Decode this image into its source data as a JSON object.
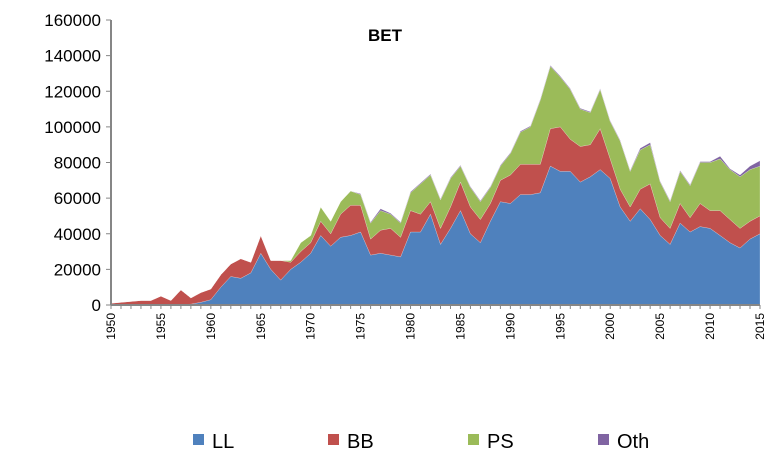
{
  "chart_data": {
    "type": "area",
    "stacked": true,
    "title": "BET",
    "xlabel": "",
    "ylabel": "",
    "ylim": [
      0,
      160000
    ],
    "yticks": [
      0,
      20000,
      40000,
      60000,
      80000,
      100000,
      120000,
      140000,
      160000
    ],
    "xlim": [
      1950,
      2015
    ],
    "xtick_labels": [
      "1950",
      "1955",
      "1960",
      "1965",
      "1970",
      "1975",
      "1980",
      "1985",
      "1990",
      "1995",
      "2000",
      "2005",
      "2010",
      "2015"
    ],
    "grid": false,
    "legend_position": "bottom",
    "x": [
      1950,
      1951,
      1952,
      1953,
      1954,
      1955,
      1956,
      1957,
      1958,
      1959,
      1960,
      1961,
      1962,
      1963,
      1964,
      1965,
      1966,
      1967,
      1968,
      1969,
      1970,
      1971,
      1972,
      1973,
      1974,
      1975,
      1976,
      1977,
      1978,
      1979,
      1980,
      1981,
      1982,
      1983,
      1984,
      1985,
      1986,
      1987,
      1988,
      1989,
      1990,
      1991,
      1992,
      1993,
      1994,
      1995,
      1996,
      1997,
      1998,
      1999,
      2000,
      2001,
      2002,
      2003,
      2004,
      2005,
      2006,
      2007,
      2008,
      2009,
      2010,
      2011,
      2012,
      2013,
      2014,
      2015
    ],
    "series": [
      {
        "name": "LL",
        "color": "#4f81bd",
        "values": [
          0,
          0,
          0,
          0,
          0,
          0,
          0,
          0,
          500,
          1500,
          3000,
          10000,
          16000,
          15000,
          18000,
          29000,
          20000,
          14000,
          20000,
          24000,
          29000,
          39000,
          33000,
          38000,
          39000,
          41000,
          28000,
          29000,
          28000,
          27000,
          41000,
          41000,
          51000,
          34000,
          43000,
          53000,
          40000,
          35000,
          47000,
          58000,
          57000,
          62000,
          62000,
          63000,
          78000,
          75000,
          75000,
          69000,
          72000,
          76000,
          71000,
          55000,
          47000,
          54000,
          48000,
          39000,
          34000,
          46000,
          41000,
          44000,
          43000,
          39000,
          35000,
          32000,
          37000,
          40000
        ]
      },
      {
        "name": "BB",
        "color": "#c0504d",
        "values": [
          1000,
          1500,
          2000,
          2500,
          2500,
          5000,
          2500,
          8500,
          3500,
          5500,
          6000,
          7000,
          7000,
          11000,
          6000,
          10000,
          5000,
          11000,
          4000,
          6000,
          6000,
          8000,
          7000,
          13000,
          17000,
          15000,
          9000,
          13000,
          15000,
          11000,
          12000,
          10000,
          7000,
          9000,
          12000,
          16000,
          15000,
          13000,
          10000,
          12000,
          16000,
          17000,
          17000,
          16000,
          21000,
          25000,
          18000,
          20000,
          18000,
          23000,
          11000,
          10000,
          8000,
          11000,
          20000,
          10000,
          9000,
          11000,
          8000,
          13000,
          10000,
          14000,
          13000,
          11000,
          10000,
          10000
        ]
      },
      {
        "name": "PS",
        "color": "#9bbb59",
        "values": [
          0,
          0,
          0,
          0,
          0,
          0,
          0,
          0,
          0,
          0,
          0,
          0,
          0,
          0,
          0,
          0,
          0,
          0,
          1000,
          5000,
          4000,
          8000,
          7000,
          7000,
          8000,
          6000,
          9000,
          11000,
          8000,
          8000,
          10000,
          17000,
          15000,
          16000,
          16000,
          9000,
          11000,
          10000,
          9000,
          8000,
          12000,
          18000,
          21000,
          36000,
          35000,
          28000,
          28000,
          21000,
          18000,
          22000,
          21000,
          27000,
          20000,
          22000,
          22000,
          20000,
          15000,
          18000,
          18000,
          23000,
          27000,
          29000,
          28000,
          29000,
          29000,
          28000
        ]
      },
      {
        "name": "Oth",
        "color": "#8064a2",
        "values": [
          0,
          0,
          0,
          0,
          0,
          0,
          0,
          0,
          0,
          0,
          0,
          0,
          0,
          0,
          0,
          0,
          0,
          0,
          0,
          0,
          0,
          0,
          0,
          0,
          0,
          500,
          500,
          1000,
          500,
          500,
          500,
          500,
          500,
          500,
          500,
          500,
          500,
          500,
          500,
          500,
          500,
          500,
          500,
          500,
          500,
          500,
          500,
          500,
          500,
          500,
          500,
          500,
          500,
          1000,
          1200,
          500,
          500,
          500,
          500,
          500,
          500,
          1500,
          500,
          1000,
          2000,
          3000
        ]
      }
    ]
  }
}
